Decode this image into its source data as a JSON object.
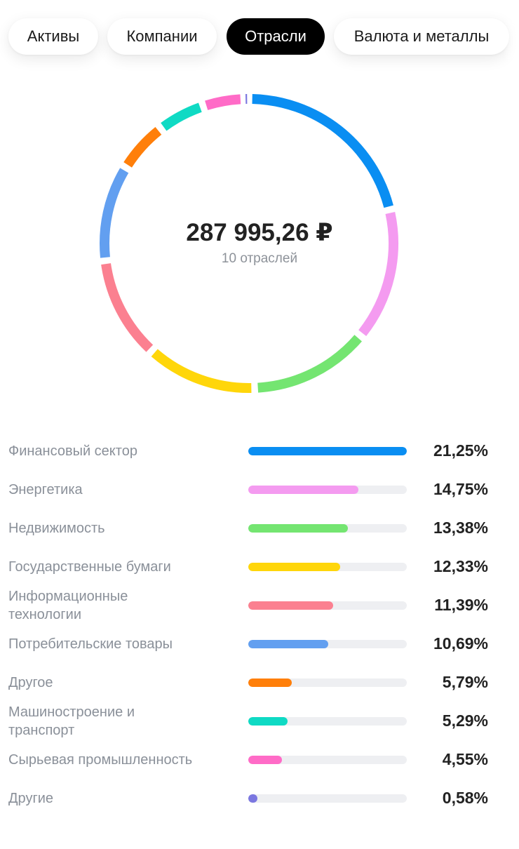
{
  "tabs": [
    {
      "label": "Активы",
      "active": false
    },
    {
      "label": "Компании",
      "active": false
    },
    {
      "label": "Отрасли",
      "active": true
    },
    {
      "label": "Валюта и металлы",
      "active": false
    }
  ],
  "summary": {
    "total": "287 995,26 ₽",
    "subtitle": "10 отраслей"
  },
  "chart_data": {
    "type": "pie",
    "title": "",
    "categories": [
      "Финансовый сектор",
      "Энергетика",
      "Недвижимость",
      "Государственные бумаги",
      "Информационные технологии",
      "Потребительские товары",
      "Другое",
      "Машиностроение и транспорт",
      "Сырьевая промышленность",
      "Другие"
    ],
    "values": [
      21.25,
      14.75,
      13.38,
      12.33,
      11.39,
      10.69,
      5.79,
      5.29,
      4.55,
      0.58
    ],
    "labels": [
      "21,25%",
      "14,75%",
      "13,38%",
      "12,33%",
      "11,39%",
      "10,69%",
      "5,79%",
      "5,29%",
      "4,55%",
      "0,58%"
    ],
    "colors": [
      "#0a8ef2",
      "#f49bf0",
      "#74e571",
      "#ffd60a",
      "#fb8090",
      "#629ff0",
      "#ff7f0a",
      "#0fdac4",
      "#ff6bc7",
      "#7b77e0"
    ],
    "unit": "%"
  }
}
